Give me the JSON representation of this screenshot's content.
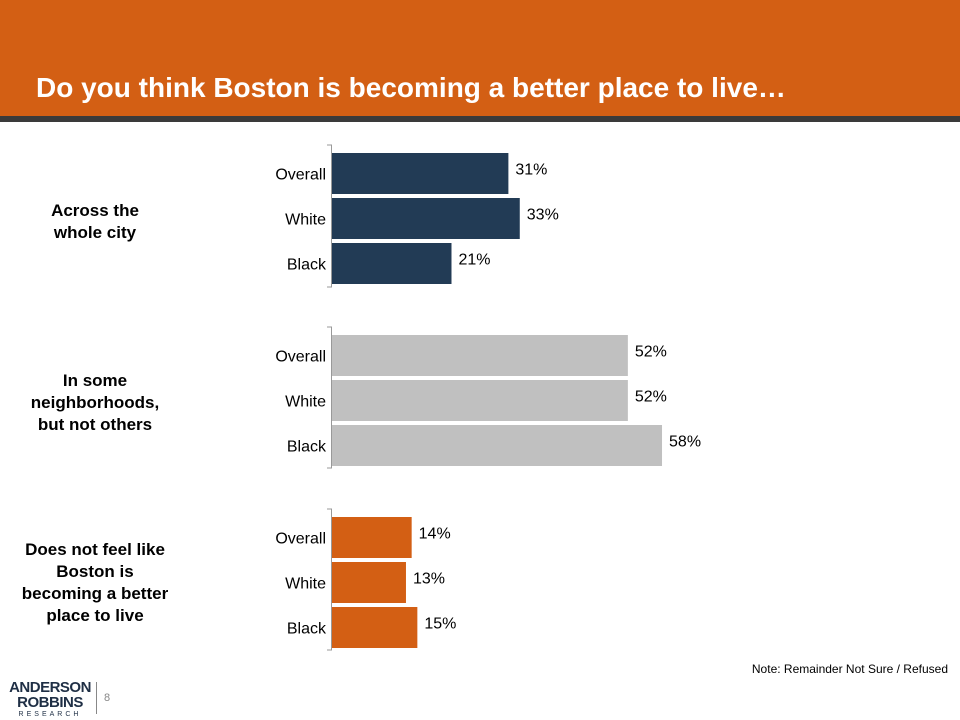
{
  "slide": {
    "title": "Do you think Boston is becoming a better place to live…",
    "note": "Note: Remainder  Not Sure / Refused",
    "page_number": "8",
    "logo": {
      "line1": "ANDERSON",
      "line2": "ROBBINS",
      "line3": "RESEARCH"
    }
  },
  "colors": {
    "header": "#D35F14",
    "across_city": "#223B55",
    "some_neighborhoods": "#C0C0C0",
    "not_better": "#D35F14",
    "axis": "#999999"
  },
  "chart_data": {
    "type": "bar",
    "orientation": "horizontal",
    "title": "Do you think Boston is becoming a better place to live…",
    "value_format": "percent",
    "xlim": [
      0,
      100
    ],
    "groups": [
      {
        "label_lines": [
          "Across the",
          "whole city"
        ],
        "color_key": "across_city",
        "categories": [
          "Overall",
          "White",
          "Black"
        ],
        "values": [
          31,
          33,
          21
        ]
      },
      {
        "label_lines": [
          "In some",
          "neighborhoods,",
          "but not others"
        ],
        "color_key": "some_neighborhoods",
        "categories": [
          "Overall",
          "White",
          "Black"
        ],
        "values": [
          52,
          52,
          58
        ]
      },
      {
        "label_lines": [
          "Does not feel like",
          "Boston is",
          "becoming a better",
          "place to live"
        ],
        "color_key": "not_better",
        "categories": [
          "Overall",
          "White",
          "Black"
        ],
        "values": [
          14,
          13,
          15
        ]
      }
    ]
  }
}
